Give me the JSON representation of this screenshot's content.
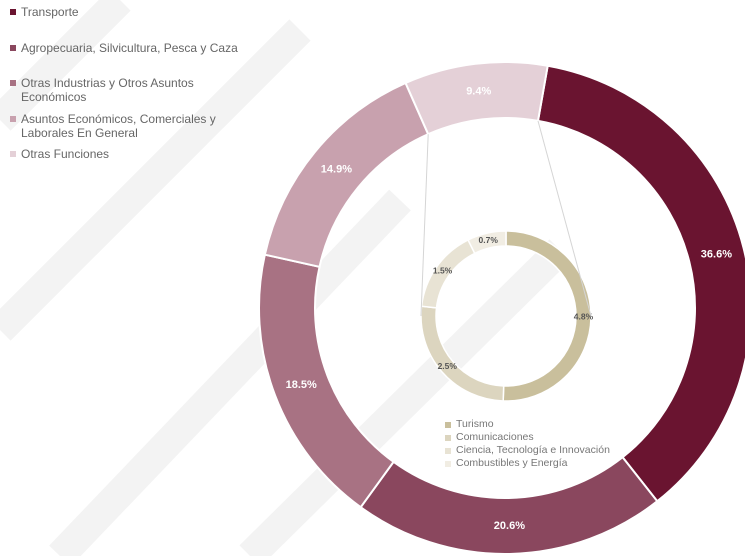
{
  "chart_data": [
    {
      "type": "donut",
      "categories": [
        "Transporte",
        "Agropecuaria, Silvicultura, Pesca y Caza",
        "Otras Industrias y Otros Asuntos Económicos",
        "Asuntos Económicos, Comerciales y Laborales En General",
        "Otras Funciones"
      ],
      "values": [
        36.6,
        20.6,
        18.5,
        14.9,
        9.4
      ],
      "value_labels": [
        "36.6%",
        "20.6%",
        "18.5%",
        "14.9%",
        "9.4%"
      ],
      "colors": [
        "#6a1430",
        "#8a475e",
        "#a87283",
        "#c8a1ae",
        "#e4d0d7"
      ],
      "legend": "top-left"
    },
    {
      "type": "donut",
      "categories": [
        "Turismo",
        "Comunicaciones",
        "Ciencia, Tecnología e Innovación",
        "Combustibles y Energía"
      ],
      "values": [
        4.8,
        2.5,
        1.5,
        0.7
      ],
      "value_labels": [
        "4.8%",
        "2.5%",
        "1.5%",
        "0.7%"
      ],
      "colors": [
        "#c9bf9c",
        "#dcd5bf",
        "#e8e3d4",
        "#f1ede3"
      ],
      "legend": "bottom"
    }
  ]
}
